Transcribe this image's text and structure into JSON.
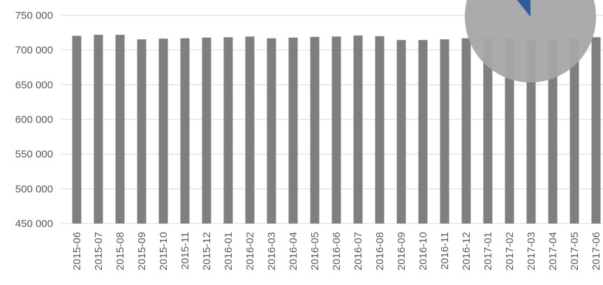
{
  "chart_data": {
    "type": "bar",
    "title": "",
    "xlabel": "",
    "ylabel": "",
    "ylim": [
      450000,
      750000
    ],
    "yticks": [
      "450 000",
      "500 000",
      "550 000",
      "600 000",
      "650 000",
      "700 000",
      "750 000"
    ],
    "grid": true,
    "categories": [
      "2015-06",
      "2015-07",
      "2015-08",
      "2015-09",
      "2015-10",
      "2015-11",
      "2015-12",
      "2016-01",
      "2016-02",
      "2016-03",
      "2016-04",
      "2016-05",
      "2016-06",
      "2016-07",
      "2016-08",
      "2016-09",
      "2016-10",
      "2016-11",
      "2016-12",
      "2017-01",
      "2017-02",
      "2017-03",
      "2017-04",
      "2017-05",
      "2017-06"
    ],
    "values": [
      720500,
      722000,
      722000,
      715500,
      716500,
      717000,
      718000,
      718500,
      719500,
      717000,
      718000,
      719000,
      719500,
      721000,
      720000,
      714500,
      714500,
      715500,
      717000,
      717000,
      717000,
      714500,
      715500,
      717000,
      718500
    ],
    "bar_color": "#7f7f7f",
    "grid_color": "#d9d9d9"
  },
  "inset_pie": {
    "type": "pie",
    "colors": [
      "#2e5e99",
      "#a6a6a6"
    ]
  }
}
